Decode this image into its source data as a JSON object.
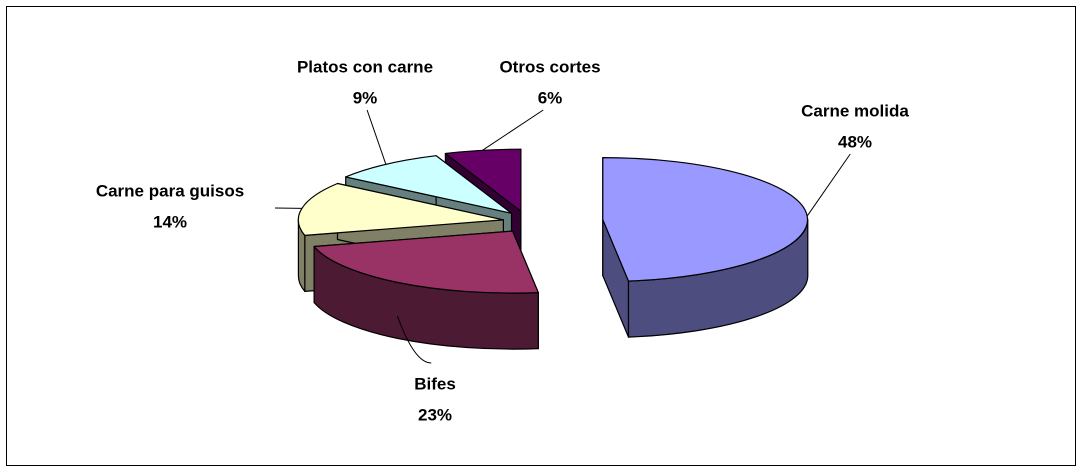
{
  "chart_data": {
    "type": "pie3d",
    "categories": [
      "Carne molida",
      "Bifes",
      "Carne para guisos",
      "Platos con carne",
      "Otros cortes"
    ],
    "values": [
      48,
      23,
      14,
      9,
      6
    ],
    "value_labels": [
      "48%",
      "23%",
      "14%",
      "9%",
      "6%"
    ],
    "colors": [
      "#9999ff",
      "#993366",
      "#ffffcc",
      "#ccffff",
      "#660066"
    ]
  }
}
